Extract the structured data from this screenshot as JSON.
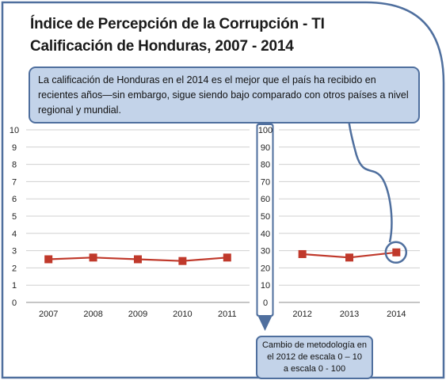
{
  "title_line1": "Índice de Percepción de la Corrupción - TI",
  "title_line2": "Calificación de Honduras, 2007 - 2014",
  "callout": "La calificación de Honduras en el 2014 es el mejor que el país ha recibido en recientes años—sin embargo, sigue siendo bajo comparado con otros países a nivel regional y mundial.",
  "note_lines": [
    "Cambio de metodología en",
    "el 2012 de escala 0 – 10",
    "a escala 0 - 100"
  ],
  "colors": {
    "series": "#c0392b",
    "frame": "#4f6f9e",
    "box_fill": "#c3d3e9",
    "grid": "#d0d0d0"
  },
  "chart_data": [
    {
      "type": "line",
      "x": [
        "2007",
        "2008",
        "2009",
        "2010",
        "2011"
      ],
      "series": [
        {
          "values": [
            2.5,
            2.6,
            2.5,
            2.4,
            2.6
          ]
        }
      ],
      "ylim": [
        0,
        10
      ],
      "yticks": [
        0,
        1,
        2,
        3,
        4,
        5,
        6,
        7,
        8,
        9,
        10
      ],
      "grid": true,
      "marker": "square"
    },
    {
      "type": "line",
      "x": [
        "2012",
        "2013",
        "2014"
      ],
      "series": [
        {
          "values": [
            28,
            26,
            29
          ]
        }
      ],
      "ylim": [
        0,
        100
      ],
      "yticks": [
        0,
        10,
        20,
        30,
        40,
        50,
        60,
        70,
        80,
        90,
        100
      ],
      "grid": true,
      "marker": "square",
      "highlight": "2014"
    }
  ]
}
